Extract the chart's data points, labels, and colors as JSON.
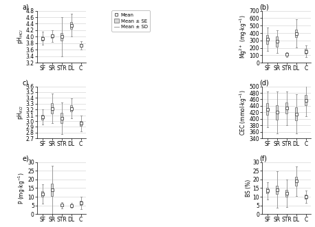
{
  "categories": [
    "SF",
    "SR",
    "STR",
    "DL",
    "C"
  ],
  "panels": [
    {
      "label": "a)",
      "ylabel": "pH$_{HCl}$",
      "ylim": [
        3.2,
        4.8
      ],
      "yticks": [
        3.2,
        3.4,
        3.6,
        3.8,
        4.0,
        4.2,
        4.4,
        4.6,
        4.8
      ],
      "means": [
        3.95,
        4.02,
        4.0,
        4.35,
        3.73
      ],
      "se": [
        0.06,
        0.05,
        0.12,
        0.1,
        0.04
      ],
      "sd": [
        0.2,
        0.17,
        0.6,
        0.35,
        0.13
      ]
    },
    {
      "label": "(b)",
      "ylabel": "Mg$^{2+}$ (mg$\\cdot$kg$^{-1}$)",
      "ylim": [
        0,
        700
      ],
      "yticks": [
        0,
        100,
        200,
        300,
        400,
        500,
        600,
        700
      ],
      "means": [
        315,
        285,
        110,
        395,
        155
      ],
      "se": [
        60,
        70,
        10,
        55,
        30
      ],
      "sd": [
        155,
        155,
        30,
        190,
        80
      ]
    },
    {
      "label": "c)",
      "ylabel": "pH$_{KCl}$",
      "ylim": [
        2.7,
        3.6
      ],
      "yticks": [
        2.7,
        2.8,
        2.9,
        3.0,
        3.1,
        3.2,
        3.3,
        3.4,
        3.5,
        3.6
      ],
      "means": [
        3.07,
        3.22,
        3.05,
        3.22,
        2.96
      ],
      "se": [
        0.04,
        0.09,
        0.09,
        0.05,
        0.04
      ],
      "sd": [
        0.13,
        0.25,
        0.27,
        0.17,
        0.14
      ]
    },
    {
      "label": "(d)",
      "ylabel": "CEC (mmol$\\cdot$kg$^{-1}$)",
      "ylim": [
        340,
        500
      ],
      "yticks": [
        340,
        360,
        380,
        400,
        420,
        440,
        460,
        480,
        500
      ],
      "means": [
        430,
        420,
        433,
        415,
        457
      ],
      "se": [
        18,
        22,
        17,
        20,
        16
      ],
      "sd": [
        55,
        65,
        52,
        60,
        48
      ]
    },
    {
      "label": "e)",
      "ylabel": "P (mg$\\cdot$kg$^{-1}$)",
      "ylim": [
        0,
        30
      ],
      "yticks": [
        0,
        5,
        10,
        15,
        20,
        25,
        30
      ],
      "means": [
        11.5,
        14.0,
        5.2,
        5.0,
        6.5
      ],
      "se": [
        1.5,
        3.5,
        0.6,
        0.5,
        1.2
      ],
      "sd": [
        5.5,
        14.0,
        1.8,
        1.5,
        3.5
      ]
    },
    {
      "label": "(f)",
      "ylabel": "BS (%)",
      "ylim": [
        0,
        30
      ],
      "yticks": [
        0,
        5,
        10,
        15,
        20,
        25,
        30
      ],
      "means": [
        13.5,
        14.0,
        12.0,
        19.0,
        10.0
      ],
      "se": [
        1.5,
        2.5,
        2.0,
        2.5,
        1.2
      ],
      "sd": [
        5.0,
        10.5,
        8.0,
        8.5,
        3.5
      ]
    }
  ],
  "box_color": "#d8d8d8",
  "box_edge_color": "#888888",
  "whisker_color": "#999999",
  "mean_marker_color": "white",
  "mean_marker_edge": "#555555",
  "legend_labels": [
    "Mean",
    "Mean ± SE",
    "Mean ± SD"
  ]
}
